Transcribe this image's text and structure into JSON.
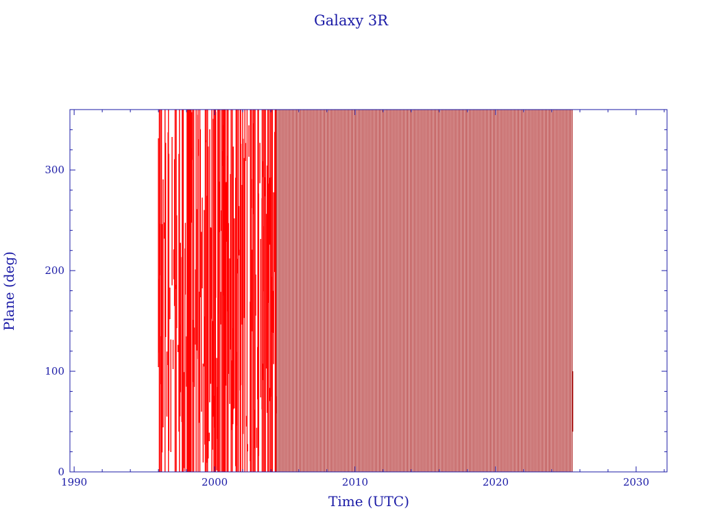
{
  "chart_data": {
    "type": "line",
    "title": "Galaxy 3R",
    "xlabel": "Time (UTC)",
    "ylabel": "Plane (deg)",
    "xlim": [
      1989.7,
      2032.2
    ],
    "ylim": [
      0,
      360
    ],
    "x_ticks": [
      1990,
      2000,
      2010,
      2020,
      2030
    ],
    "x_tick_labels": [
      "1990",
      "2000",
      "2010",
      "2020",
      "2030"
    ],
    "y_ticks": [
      0,
      100,
      200,
      300
    ],
    "y_tick_labels": [
      "0",
      "100",
      "200",
      "300"
    ],
    "grid": false,
    "colors": {
      "axes": "#1a1aa6",
      "early_series": "#ff0000",
      "late_series": "#a00000"
    },
    "data_range": [
      1996.0,
      2025.5
    ],
    "irregular_period": [
      1996.0,
      2004.4
    ],
    "regular_drift": {
      "start": 2004.4,
      "end": 2025.5,
      "cycles_per_year": 10.5,
      "start_phase_deg": 360,
      "end_phase_deg": 40,
      "note_gap_crossings": [
        2008.3,
        2012.0,
        2015.4,
        2018.9,
        2022.6
      ]
    }
  }
}
